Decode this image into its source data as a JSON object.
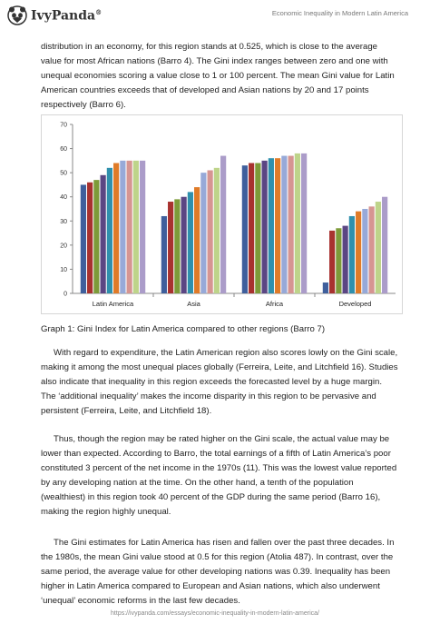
{
  "header": {
    "logo_text": "IvyPanda",
    "registered_mark": "®",
    "title": "Economic Inequality in Modern Latin America"
  },
  "paragraphs": [
    "distribution in an economy, for this region stands at 0.525, which is close to the average value for most African nations (Barro 4). The Gini index ranges between zero and one with unequal economies scoring a value close to 1 or 100 percent. The mean Gini value for Latin American countries exceeds that of developed and Asian nations by 20 and 17 points respectively (Barro 6).",
    "With regard to expenditure, the Latin American region also scores lowly on the Gini scale, making it among the most unequal places globally (Ferreira, Leite, and Litchfield 16). Studies also indicate that inequality in this region exceeds the forecasted level by a huge margin. The ‘additional inequality’ makes the income disparity in this region to be pervasive and persistent (Ferreira, Leite, and Litchfield 18).",
    "Thus, though the region may be rated higher on the Gini scale, the actual value may be lower than expected. According to Barro, the total earnings of a fifth of Latin America’s poor constituted 3 percent of the net income in the 1970s (11). This was the lowest value reported by any developing nation at the time. On the other hand, a tenth of the population (wealthiest) in this region took 40 percent of the GDP during the same period (Barro 16), making the region highly unequal.",
    "The Gini estimates for Latin America has risen and fallen over the past three decades. In the 1980s, the mean Gini value stood at 0.5 for this region (Atolia 487). In contrast, over the same period, the average value for other developing nations was 0.39. Inequality has been higher in Latin America compared to European and Asian nations, which also underwent ‘unequal’ economic reforms in the last few decades."
  ],
  "caption": "Graph 1: Gini Index for Latin America compared to other regions (Barro 7)",
  "footer": "https://ivypanda.com/essays/economic-inequality-in-modern-latin-america/",
  "chart_data": {
    "type": "bar",
    "categories": [
      "Latin America",
      "Asia",
      "Africa",
      "Developed"
    ],
    "ylim": [
      0,
      70
    ],
    "yticks": [
      0,
      10,
      20,
      30,
      40,
      50,
      60,
      70
    ],
    "grid": false,
    "legend": "none",
    "series_colors": [
      "#3f5f9c",
      "#a8322f",
      "#7d9b39",
      "#5b4683",
      "#2f90ad",
      "#e07b28",
      "#97a9d8",
      "#d69592",
      "#bed48a",
      "#ab9cc9"
    ],
    "series": [
      {
        "values": [
          45,
          32,
          53,
          4.5
        ]
      },
      {
        "values": [
          46,
          38,
          54,
          26
        ]
      },
      {
        "values": [
          47,
          39,
          54,
          27
        ]
      },
      {
        "values": [
          49,
          40,
          55,
          28
        ]
      },
      {
        "values": [
          52,
          42,
          56,
          32
        ]
      },
      {
        "values": [
          54,
          44,
          56,
          34
        ]
      },
      {
        "values": [
          55,
          50,
          57,
          35
        ]
      },
      {
        "values": [
          55,
          51,
          57,
          36
        ]
      },
      {
        "values": [
          55,
          52,
          58,
          38
        ]
      },
      {
        "values": [
          55,
          57,
          58,
          40
        ]
      }
    ]
  }
}
